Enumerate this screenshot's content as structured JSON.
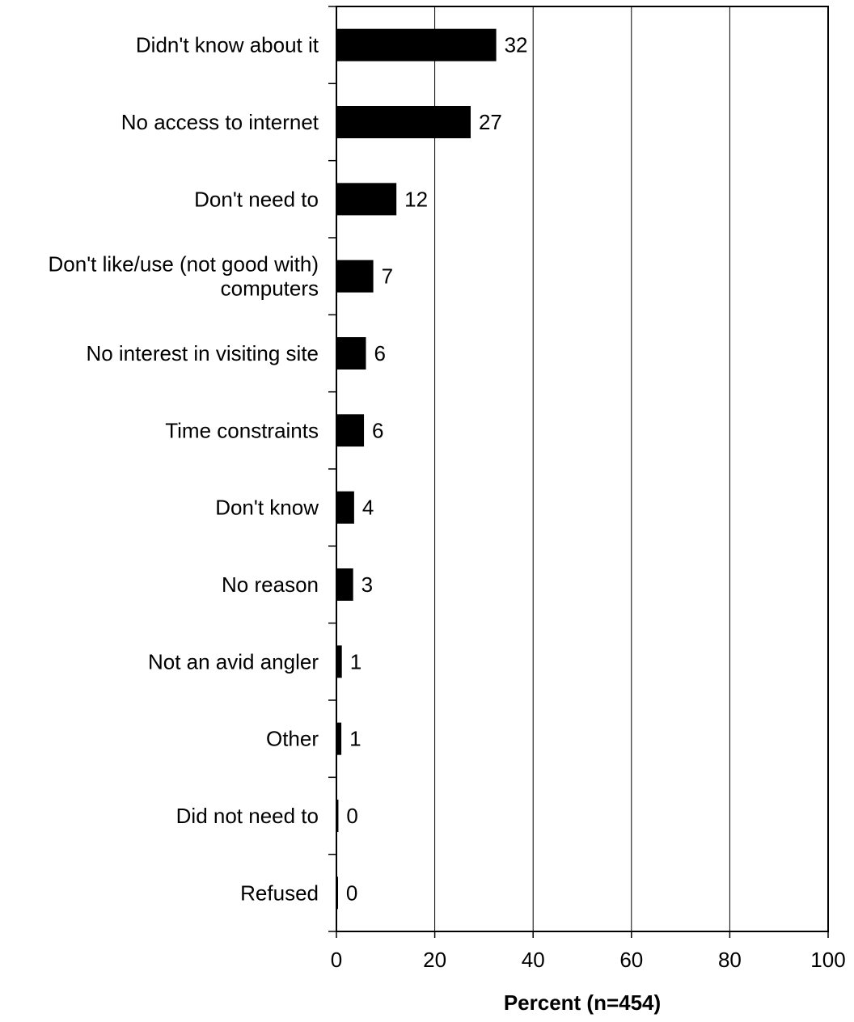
{
  "chart_data": {
    "type": "bar",
    "orientation": "horizontal",
    "categories": [
      [
        "Didn't know about it"
      ],
      [
        "No access to internet"
      ],
      [
        "Don't need to"
      ],
      [
        "Don't like/use (not good with)",
        "computers"
      ],
      [
        "No interest in visiting site"
      ],
      [
        "Time constraints"
      ],
      [
        "Don't know"
      ],
      [
        "No reason"
      ],
      [
        "Not an avid angler"
      ],
      [
        "Other"
      ],
      [
        "Did not need to"
      ],
      [
        "Refused"
      ]
    ],
    "values": [
      32.5,
      27.3,
      12.2,
      7.5,
      6.0,
      5.6,
      3.6,
      3.4,
      1.1,
      1.0,
      0.4,
      0.3
    ],
    "data_labels": [
      "32",
      "27",
      "12",
      "7",
      "6",
      "6",
      "4",
      "3",
      "1",
      "1",
      "0",
      "0"
    ],
    "xlabel": "Percent (n=454)",
    "ylabel": "",
    "title": "",
    "xlim": [
      0,
      100
    ],
    "xticks": [
      "0",
      "20",
      "40",
      "60",
      "80",
      "100"
    ],
    "xtick_values": [
      0,
      20,
      40,
      60,
      80,
      100
    ],
    "gridlines": "vertical",
    "legend": "none",
    "colors": {
      "bar": "#000000",
      "grid": "#000000",
      "background": "#ffffff"
    }
  }
}
